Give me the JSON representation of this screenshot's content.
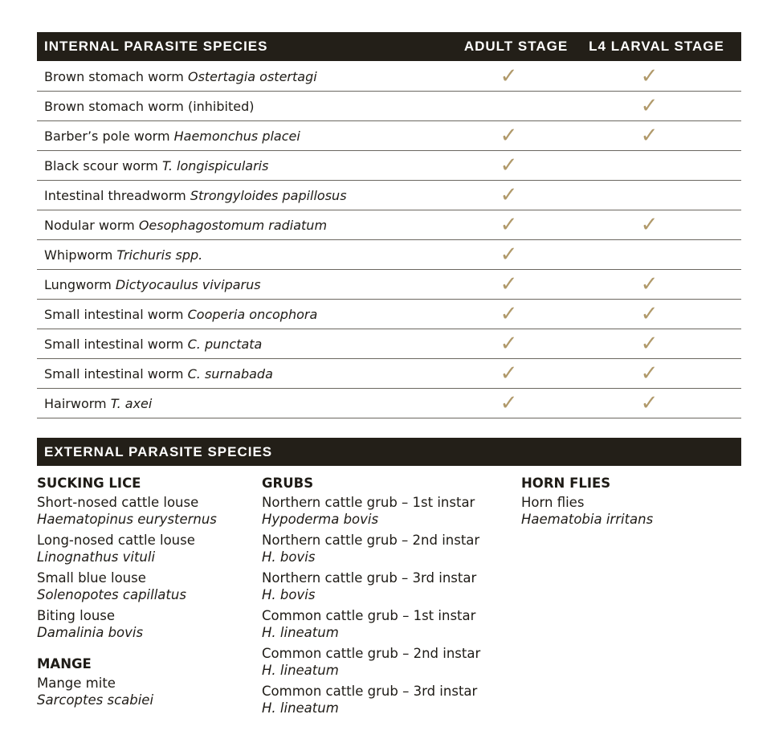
{
  "internal": {
    "headers": [
      "INTERNAL PARASITE SPECIES",
      "ADULT STAGE",
      "L4 LARVAL STAGE"
    ],
    "check_color": "#b0996a",
    "check_icon": "check-icon",
    "rows": [
      {
        "common": "Brown stomach worm",
        "latin": "Ostertagia ostertagi",
        "adult": true,
        "l4": true
      },
      {
        "common": "Brown stomach worm (inhibited)",
        "latin": "",
        "adult": false,
        "l4": true
      },
      {
        "common": "Barber’s pole worm",
        "latin": "Haemonchus placei",
        "adult": true,
        "l4": true
      },
      {
        "common": "Black scour worm",
        "latin": "T. longispicularis",
        "adult": true,
        "l4": false
      },
      {
        "common": "Intestinal threadworm",
        "latin": "Strongyloides papillosus",
        "adult": true,
        "l4": false
      },
      {
        "common": "Nodular worm",
        "latin": "Oesophagostomum radiatum",
        "adult": true,
        "l4": true
      },
      {
        "common": "Whipworm",
        "latin": "Trichuris spp.",
        "adult": true,
        "l4": false
      },
      {
        "common": "Lungworm",
        "latin": "Dictyocaulus viviparus",
        "adult": true,
        "l4": true
      },
      {
        "common": "Small intestinal worm",
        "latin": "Cooperia oncophora",
        "adult": true,
        "l4": true
      },
      {
        "common": "Small intestinal worm",
        "latin": "C. punctata",
        "adult": true,
        "l4": true
      },
      {
        "common": "Small intestinal worm",
        "latin": "C. surnabada",
        "adult": true,
        "l4": true
      },
      {
        "common": "Hairworm",
        "latin": "T. axei",
        "adult": true,
        "l4": true
      }
    ]
  },
  "external": {
    "header": "EXTERNAL PARASITE SPECIES",
    "columns": [
      [
        {
          "title": "SUCKING LICE",
          "items": [
            {
              "common": "Short-nosed cattle louse",
              "latin": "Haematopinus eurysternus"
            },
            {
              "common": "Long-nosed cattle louse",
              "latin": "Linognathus vituli"
            },
            {
              "common": "Small blue louse",
              "latin": "Solenopotes capillatus"
            },
            {
              "common": "Biting louse",
              "latin": "Damalinia bovis"
            }
          ]
        },
        {
          "title": "MANGE",
          "items": [
            {
              "common": "Mange mite",
              "latin": "Sarcoptes scabiei"
            }
          ]
        }
      ],
      [
        {
          "title": "GRUBS",
          "items": [
            {
              "common": "Northern cattle grub – 1st instar",
              "latin": "Hypoderma bovis"
            },
            {
              "common": "Northern cattle grub – 2nd instar",
              "latin": "H. bovis"
            },
            {
              "common": "Northern cattle grub – 3rd instar",
              "latin": "H. bovis"
            },
            {
              "common": "Common cattle grub – 1st instar",
              "latin": "H. lineatum"
            },
            {
              "common": "Common cattle grub – 2nd instar",
              "latin": "H. lineatum"
            },
            {
              "common": "Common cattle grub – 3rd instar",
              "latin": "H. lineatum"
            }
          ]
        }
      ],
      [
        {
          "title": "HORN FLIES",
          "items": [
            {
              "common": "Horn flies",
              "latin": "Haematobia irritans"
            }
          ]
        }
      ]
    ]
  }
}
